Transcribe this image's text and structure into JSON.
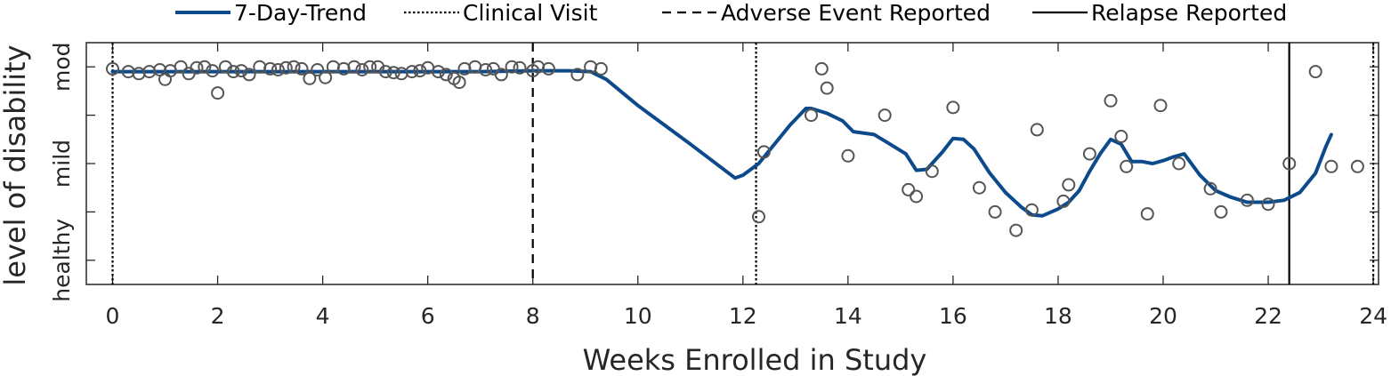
{
  "chart_data": {
    "type": "line",
    "xlabel": "Weeks Enrolled in Study",
    "ylabel": "level of disability",
    "xlim": [
      -0.5,
      24.1
    ],
    "ylim": [
      -0.25,
      2.25
    ],
    "x_ticks": [
      0,
      2,
      4,
      6,
      8,
      10,
      12,
      14,
      16,
      18,
      20,
      22,
      24
    ],
    "y_tick_values": [
      0,
      1,
      2
    ],
    "y_tick_labels": [
      "healthy",
      "mild",
      "mod"
    ],
    "grid": false,
    "legend": {
      "placement": "top",
      "entries": [
        {
          "label": "7-Day-Trend",
          "style": "solid-thick"
        },
        {
          "label": "Clinical Visit",
          "style": "dotted"
        },
        {
          "label": "Adverse Event Reported",
          "style": "dashed"
        },
        {
          "label": "Relapse Reported",
          "style": "solid"
        }
      ]
    },
    "colors": {
      "trend": "#0d4a8c",
      "scatter": "#555555",
      "events": "#000000",
      "axis": "#262626"
    },
    "trend": {
      "x": [
        0,
        1,
        2,
        3,
        4,
        5,
        6,
        7,
        8,
        8.7,
        9.1,
        9.4,
        10,
        11,
        11.85,
        12,
        12.3,
        12.6,
        12.9,
        13.2,
        13.3,
        13.6,
        13.9,
        14.1,
        14.5,
        14.8,
        15.1,
        15.3,
        15.5,
        15.8,
        16,
        16.2,
        16.4,
        16.7,
        17,
        17.3,
        17.5,
        17.7,
        18,
        18.2,
        18.4,
        18.6,
        18.8,
        19,
        19.2,
        19.4,
        19.6,
        19.8,
        20,
        20.2,
        20.4,
        20.7,
        21,
        21.3,
        21.6,
        22,
        22.3,
        22.6,
        22.9,
        23.1,
        23.2
      ],
      "y": [
        1.95,
        1.95,
        1.95,
        1.95,
        1.95,
        1.95,
        1.95,
        1.95,
        1.96,
        1.96,
        1.95,
        1.87,
        1.6,
        1.2,
        0.85,
        0.88,
        1.0,
        1.2,
        1.4,
        1.57,
        1.57,
        1.52,
        1.44,
        1.33,
        1.3,
        1.2,
        1.1,
        0.93,
        0.94,
        1.12,
        1.26,
        1.25,
        1.15,
        0.9,
        0.7,
        0.55,
        0.47,
        0.46,
        0.53,
        0.6,
        0.72,
        0.92,
        1.1,
        1.25,
        1.2,
        1.02,
        1.02,
        1.0,
        1.03,
        1.07,
        1.1,
        0.88,
        0.72,
        0.65,
        0.6,
        0.6,
        0.62,
        0.7,
        0.9,
        1.18,
        1.3
      ]
    },
    "scatter": {
      "x": [
        0,
        0.3,
        0.5,
        0.7,
        0.9,
        1.0,
        1.1,
        1.3,
        1.45,
        1.6,
        1.75,
        1.9,
        2.0,
        2.15,
        2.3,
        2.45,
        2.6,
        2.8,
        3.0,
        3.15,
        3.3,
        3.45,
        3.6,
        3.75,
        3.9,
        4.05,
        4.2,
        4.4,
        4.6,
        4.75,
        4.9,
        5.05,
        5.2,
        5.35,
        5.5,
        5.7,
        5.85,
        6.0,
        6.2,
        6.35,
        6.5,
        6.6,
        6.7,
        6.9,
        7.1,
        7.25,
        7.4,
        7.6,
        7.75,
        8.0,
        8.1,
        8.3,
        8.85,
        9.1,
        9.3,
        12.3,
        12.4,
        13.3,
        13.5,
        13.6,
        14.0,
        14.7,
        15.15,
        15.3,
        15.6,
        16.0,
        16.5,
        16.8,
        17.2,
        17.5,
        17.6,
        18.1,
        18.2,
        18.6,
        19.0,
        19.2,
        19.3,
        19.7,
        19.95,
        20.3,
        20.9,
        21.1,
        21.6,
        22.0,
        22.4,
        22.9,
        23.2,
        23.7
      ],
      "y": [
        1.98,
        1.95,
        1.93,
        1.95,
        1.97,
        1.87,
        1.96,
        2.0,
        1.93,
        1.99,
        2.0,
        1.96,
        1.73,
        2.0,
        1.95,
        1.96,
        1.92,
        2.0,
        1.98,
        1.97,
        1.99,
        2.0,
        1.98,
        1.88,
        1.97,
        1.89,
        2.0,
        1.98,
        2.0,
        1.97,
        2.0,
        2.0,
        1.95,
        1.94,
        1.93,
        1.95,
        1.96,
        1.99,
        1.95,
        1.92,
        1.88,
        1.84,
        1.98,
        2.0,
        1.97,
        1.98,
        1.92,
        2.0,
        1.99,
        1.96,
        2.0,
        1.98,
        1.92,
        2.0,
        1.98,
        0.45,
        1.12,
        1.5,
        1.98,
        1.78,
        1.08,
        1.5,
        0.73,
        0.66,
        0.92,
        1.58,
        0.75,
        0.5,
        0.31,
        0.52,
        1.35,
        0.61,
        0.78,
        1.1,
        1.65,
        1.28,
        0.97,
        0.48,
        1.6,
        1.0,
        0.74,
        0.5,
        0.62,
        0.58,
        1.0,
        1.95,
        0.97,
        0.97
      ],
      "marker": "open-circle"
    },
    "events": [
      {
        "x": 0,
        "type": "Clinical Visit"
      },
      {
        "x": 8,
        "type": "Adverse Event Reported"
      },
      {
        "x": 12.25,
        "type": "Clinical Visit"
      },
      {
        "x": 22.4,
        "type": "Relapse Reported"
      },
      {
        "x": 24.0,
        "type": "Clinical Visit"
      }
    ]
  }
}
